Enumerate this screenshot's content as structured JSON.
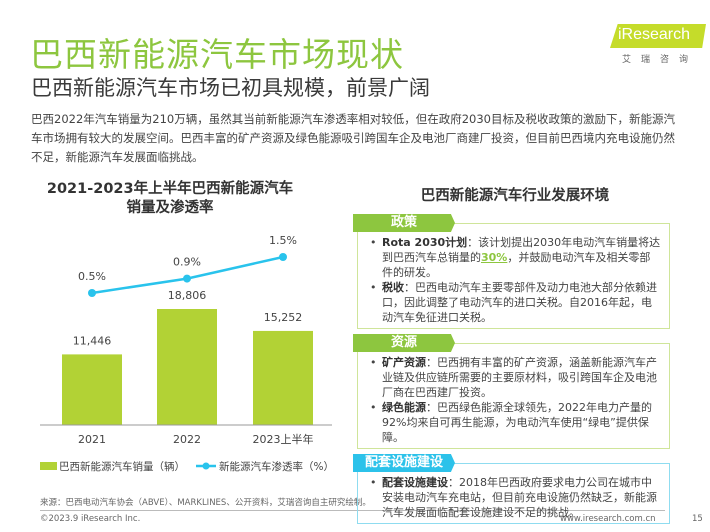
{
  "header": {
    "title": "巴西新能源汽车市场现状",
    "subtitle": "巴西新能源汽车市场已初具规模，前景广阔",
    "logo": "iResearch",
    "logo_sub": "艾瑞咨询"
  },
  "intro": "巴西2022年汽车销量为210万辆，虽然其当前新能源汽车渗透率相对较低，但在政府2030目标及税收政策的激励下，新能源汽车市场拥有较大的发展空间。巴西丰富的矿产资源及绿色能源吸引跨国车企及电池厂商建厂投资，但目前巴西境内充电设施仍然不足，新能源汽车发展面临挑战。",
  "chart_data": {
    "type": "bar",
    "title": "2021-2023年上半年巴西新能源汽车销量及渗透率",
    "title_line1": "2021-2023年上半年巴西新能源汽车",
    "title_line2": "销量及渗透率",
    "categories": [
      "2021",
      "2022",
      "2023上半年"
    ],
    "series": [
      {
        "name": "巴西新能源汽车销量（辆）",
        "type": "bar",
        "values": [
          11446,
          18806,
          15252
        ],
        "labels": [
          "11,446",
          "18,806",
          "15,252"
        ],
        "color": "#b2d235"
      },
      {
        "name": "新能源汽车渗透率（%）",
        "type": "line",
        "values": [
          0.5,
          0.9,
          1.5
        ],
        "labels": [
          "0.5%",
          "0.9%",
          "1.5%"
        ],
        "color": "#29c3ec"
      }
    ],
    "legend": "bottom",
    "grid": false
  },
  "source": "来源：巴西电动汽车协会（ABVE）、MARKLINES、公开资料，艾瑞咨询自主研究绘制。",
  "footer": {
    "copyright": "©2023.9 iResearch Inc.",
    "url": "www.iresearch.com.cn",
    "page": "15"
  },
  "env": {
    "title": "巴西新能源汽车行业发展环境",
    "sections": [
      {
        "tag": "政策",
        "items": [
          {
            "bold": "Rota 2030计划",
            "pre": "：该计划提出2030年电动汽车销量将达到巴西汽车总销量的",
            "hl": "30%",
            "post": "，并鼓励电动汽车及相关零部件的研发。"
          },
          {
            "bold": "税收",
            "pre": "：巴西电动汽车主要零部件及动力电池大部分依赖进口，因此调整了电动汽车的进口关税。自2016年起，电动汽车免征进口关税。"
          }
        ]
      },
      {
        "tag": "资源",
        "items": [
          {
            "bold": "矿产资源",
            "pre": "：巴西拥有丰富的矿产资源，涵盖新能源汽车产业链及供应链所需要的主要原材料，吸引跨国车企及电池厂商在巴西建厂投资。"
          },
          {
            "bold": "绿色能源",
            "pre": "：巴西绿色能源全球领先，2022年电力产量的92%均来自可再生能源，为电动汽车使用“绿电”提供保障。"
          }
        ]
      },
      {
        "tag": "配套设施建设",
        "items": [
          {
            "bold": "配套设施建设",
            "pre": "：2018年巴西政府要求电力公司在城市中安装电动汽车充电站，但目前充电设施仍然缺乏，新能源汽车发展面临配套设施建设不足的挑战。"
          }
        ]
      }
    ]
  }
}
